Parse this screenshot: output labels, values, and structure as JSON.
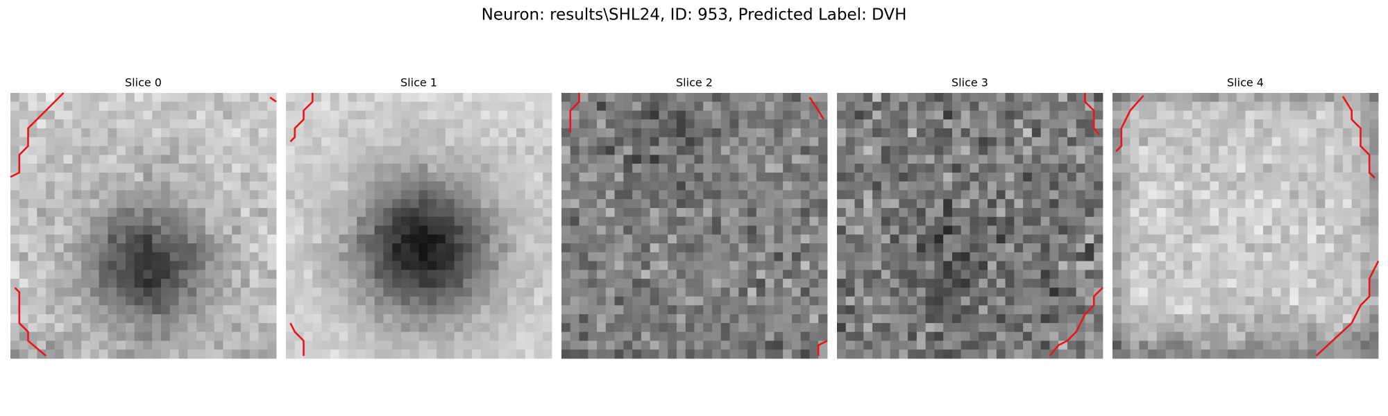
{
  "title": "Neuron: results\\SHL24, ID: 953, Predicted Label: DVH",
  "panels": [
    {
      "title": "Slice 0"
    },
    {
      "title": "Slice 1"
    },
    {
      "title": "Slice 2"
    },
    {
      "title": "Slice 3"
    },
    {
      "title": "Slice 4"
    }
  ]
}
